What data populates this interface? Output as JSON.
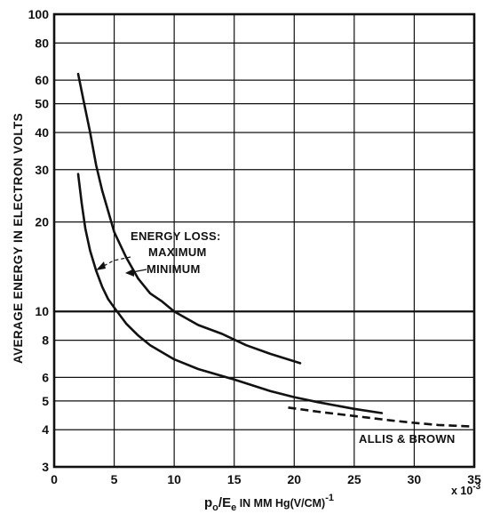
{
  "chart_data": {
    "type": "line",
    "title": "",
    "ylabel": "AVERAGE ENERGY IN ELECTRON VOLTS",
    "xlabel": {
      "p": "p",
      "p_sub": "o",
      "slash": "/E",
      "e_sub": "e",
      "in_text": " IN MM Hg(V/CM)",
      "exponent": "-1"
    },
    "x_multiplier": {
      "base": "x 10",
      "exp": "-3"
    },
    "xlim": [
      0,
      35
    ],
    "ylim": [
      3,
      100
    ],
    "y_scale": "log",
    "grid": true,
    "x_ticks": [
      "0",
      "5",
      "10",
      "15",
      "20",
      "25",
      "30",
      "35"
    ],
    "y_ticks": [
      "3",
      "4",
      "5",
      "6",
      "8",
      "10",
      "20",
      "30",
      "40",
      "50",
      "60",
      "80",
      "100"
    ],
    "annotations": {
      "energy_loss": "ENERGY LOSS:",
      "maximum": "MAXIMUM",
      "minimum": "MINIMUM",
      "allis_brown": "ALLIS & BROWN"
    },
    "series": [
      {
        "key": "max",
        "style": "solid",
        "x": [
          2.0,
          2.5,
          3.0,
          3.5,
          4.0,
          5.0,
          6.0,
          7.0,
          8.0,
          9.0,
          10.0,
          12.0,
          14.0,
          16.0,
          18.0,
          20.5
        ],
        "y": [
          63,
          50,
          40,
          31,
          25.5,
          18.5,
          15.2,
          12.9,
          11.5,
          10.8,
          10.0,
          9.0,
          8.4,
          7.7,
          7.2,
          6.7
        ]
      },
      {
        "key": "min",
        "style": "solid",
        "x": [
          2.0,
          2.3,
          2.6,
          3.0,
          3.5,
          4.0,
          4.5,
          5.0,
          6.0,
          7.0,
          8.0,
          10.0,
          12.0,
          15.0,
          18.0,
          20.0,
          22.0,
          25.0,
          27.3
        ],
        "y": [
          29,
          23,
          19,
          16,
          13.7,
          12.1,
          11,
          10.3,
          9.1,
          8.3,
          7.7,
          6.9,
          6.4,
          5.9,
          5.4,
          5.15,
          4.95,
          4.7,
          4.55
        ]
      },
      {
        "key": "allis_brown",
        "style": "dashed",
        "x": [
          19.5,
          22.0,
          25.0,
          28.0,
          30.0,
          32.0,
          35.0
        ],
        "y": [
          4.75,
          4.6,
          4.45,
          4.3,
          4.22,
          4.15,
          4.1
        ]
      }
    ]
  }
}
